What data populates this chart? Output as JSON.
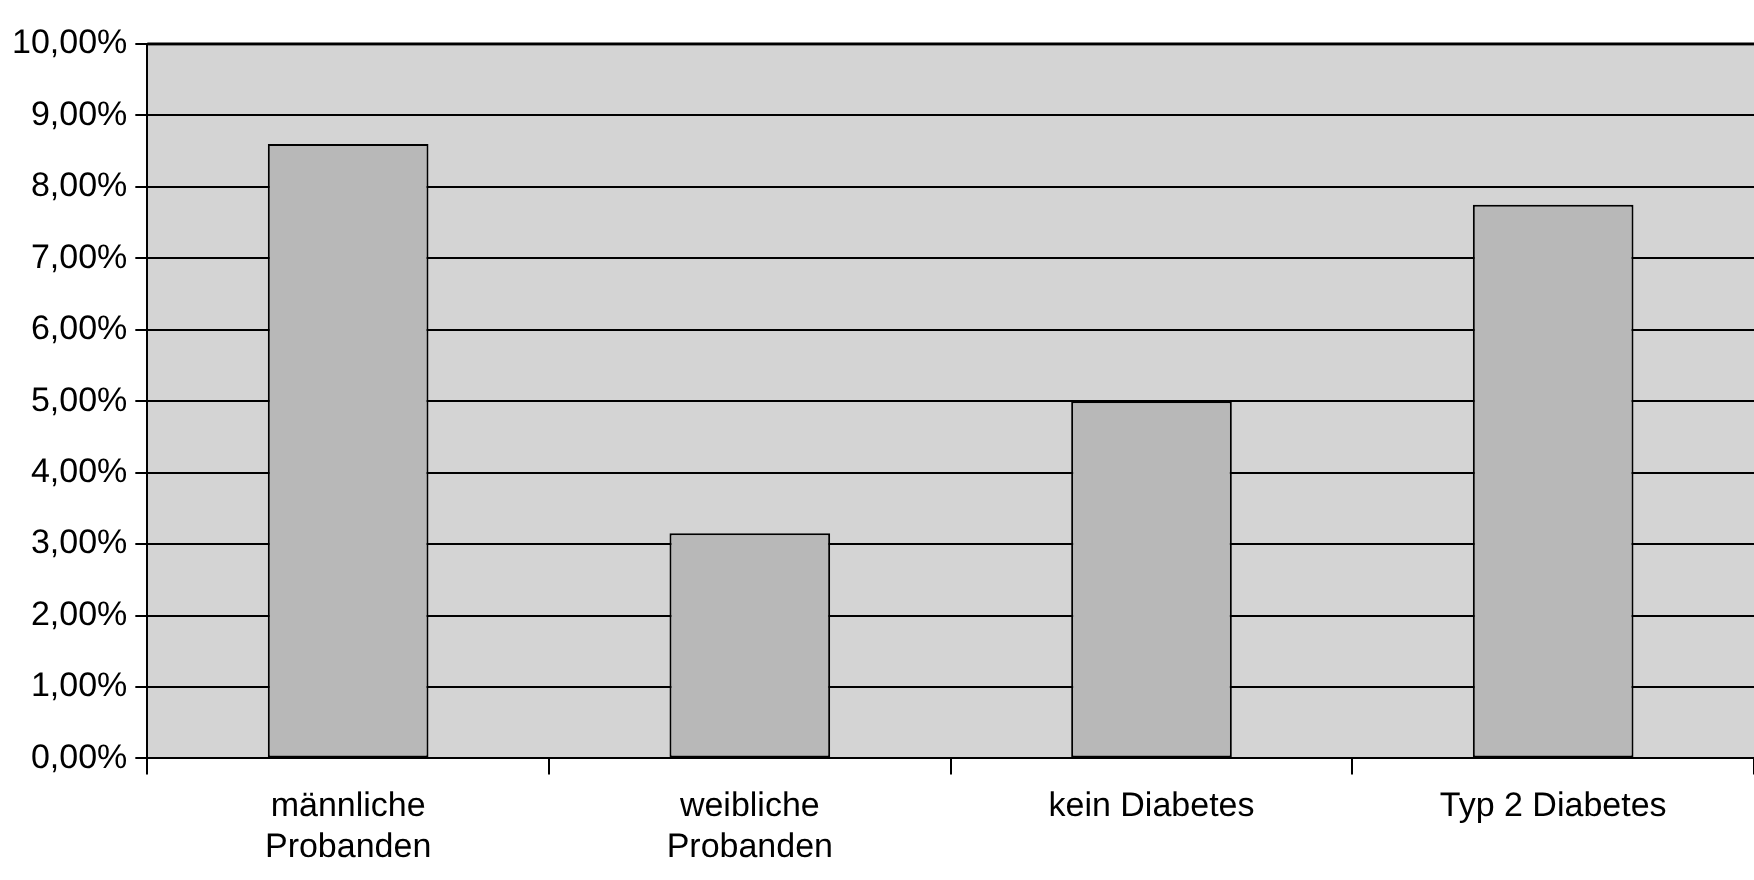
{
  "chart_data": {
    "type": "bar",
    "categories": [
      "männliche Probanden",
      "weibliche Probanden",
      "kein Diabetes",
      "Typ 2 Diabetes"
    ],
    "values": [
      8.6,
      3.15,
      5.0,
      7.75
    ],
    "color": "#b8b8b8",
    "ylim": [
      0,
      10
    ],
    "yticks": [
      {
        "value": 0,
        "label": "0,00%"
      },
      {
        "value": 1,
        "label": "1,00%"
      },
      {
        "value": 2,
        "label": "2,00%"
      },
      {
        "value": 3,
        "label": "3,00%"
      },
      {
        "value": 4,
        "label": "4,00%"
      },
      {
        "value": 5,
        "label": "5,00%"
      },
      {
        "value": 6,
        "label": "6,00%"
      },
      {
        "value": 7,
        "label": "7,00%"
      },
      {
        "value": 8,
        "label": "8,00%"
      },
      {
        "value": 9,
        "label": "9,00%"
      },
      {
        "value": 10,
        "label": "10,00%"
      }
    ],
    "grid": "y",
    "legend": false
  }
}
